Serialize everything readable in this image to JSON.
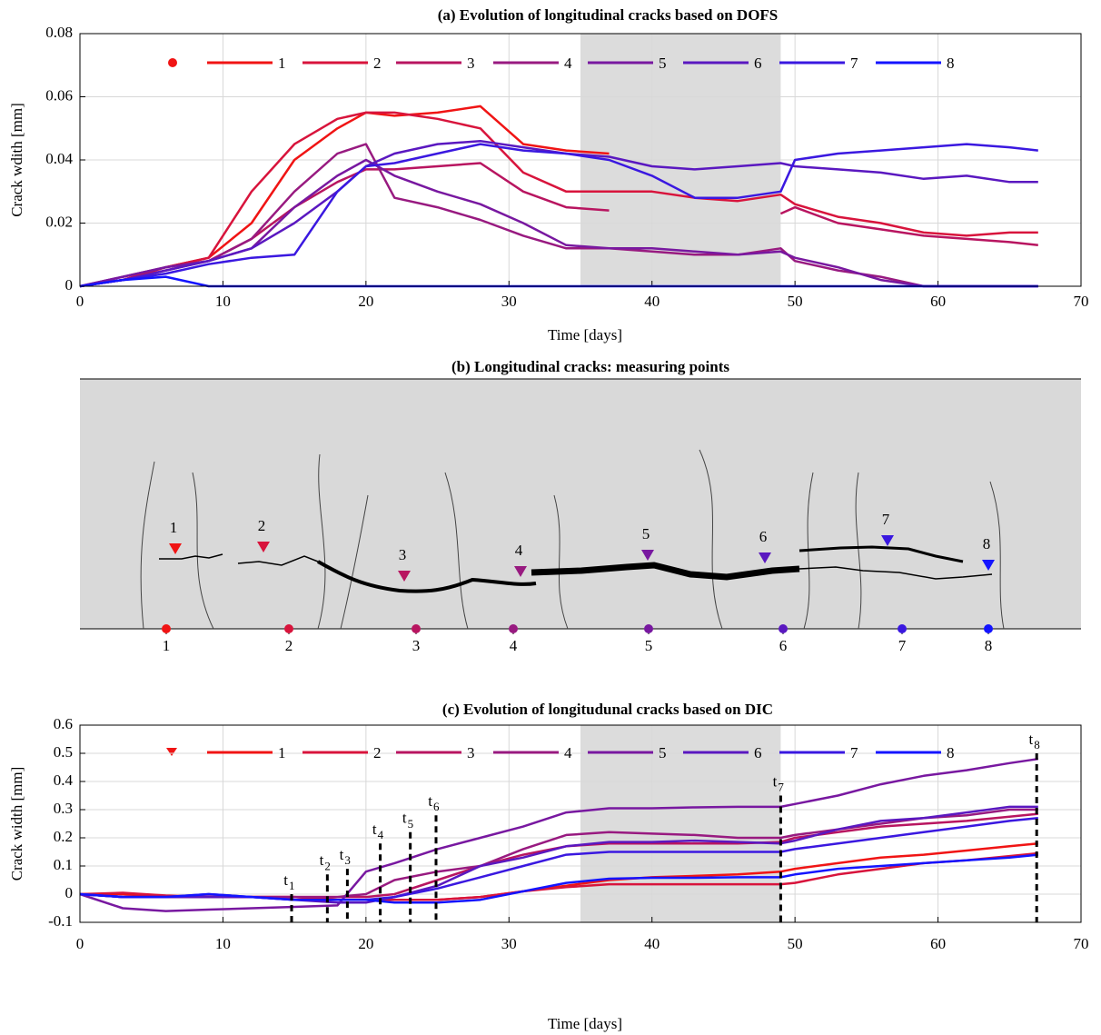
{
  "chart_data": [
    {
      "type": "line",
      "title": "(a) Evolution of longitudinal cracks based on DOFS",
      "xlabel": "Time [days]",
      "ylabel": "Crack wdith [mm]",
      "x": [
        0,
        3,
        6,
        9,
        12,
        15,
        18,
        20,
        22,
        25,
        28,
        31,
        34,
        37,
        40,
        43,
        46,
        49,
        50,
        53,
        56,
        59,
        62,
        65,
        67
      ],
      "xlim": [
        0,
        70
      ],
      "xticks": [
        0,
        10,
        20,
        30,
        40,
        50,
        60,
        70
      ],
      "ylim": [
        0,
        0.08
      ],
      "yticks": [
        0,
        0.02,
        0.04,
        0.06,
        0.08
      ],
      "grid": true,
      "shade": [
        35,
        49
      ],
      "series": [
        {
          "name": "1",
          "color": "#f01414",
          "values": [
            0,
            0.002,
            0.006,
            0.009,
            0.02,
            0.04,
            0.05,
            0.055,
            0.054,
            0.055,
            0.057,
            0.045,
            0.043,
            0.042,
            null,
            null,
            null,
            null,
            null,
            null,
            null,
            null,
            null,
            null,
            null
          ]
        },
        {
          "name": "2",
          "color": "#d8143c",
          "values": [
            0,
            0.002,
            0.006,
            0.009,
            0.03,
            0.045,
            0.053,
            0.055,
            0.055,
            0.053,
            0.05,
            0.036,
            0.03,
            0.03,
            0.03,
            0.028,
            0.027,
            0.029,
            0.026,
            0.022,
            0.02,
            0.017,
            0.016,
            0.017,
            0.017
          ]
        },
        {
          "name": "3",
          "color": "#b81560",
          "values": [
            0,
            0.002,
            0.005,
            0.008,
            0.015,
            0.025,
            0.033,
            0.037,
            0.037,
            0.038,
            0.039,
            0.03,
            0.025,
            0.024,
            null,
            null,
            null,
            0.023,
            0.025,
            0.02,
            0.018,
            0.016,
            0.015,
            0.014,
            0.013
          ]
        },
        {
          "name": "4",
          "color": "#981a80",
          "values": [
            0,
            0.003,
            0.006,
            0.008,
            0.015,
            0.03,
            0.042,
            0.045,
            0.028,
            0.025,
            0.021,
            0.016,
            0.012,
            0.012,
            0.011,
            0.01,
            0.01,
            0.012,
            0.008,
            0.005,
            0.003,
            0,
            0,
            0,
            0
          ]
        },
        {
          "name": "5",
          "color": "#7818a0",
          "values": [
            0,
            0.003,
            0.006,
            0.008,
            0.012,
            0.025,
            0.035,
            0.04,
            0.035,
            0.03,
            0.026,
            0.02,
            0.013,
            0.012,
            0.012,
            0.011,
            0.01,
            0.011,
            0.009,
            0.006,
            0.002,
            0,
            0,
            0,
            0
          ]
        },
        {
          "name": "6",
          "color": "#5a18c0",
          "values": [
            0,
            0.002,
            0.005,
            0.008,
            0.012,
            0.02,
            0.03,
            0.038,
            0.042,
            0.045,
            0.046,
            0.044,
            0.042,
            0.041,
            0.038,
            0.037,
            0.038,
            0.039,
            0.038,
            0.037,
            0.036,
            0.034,
            0.035,
            0.033,
            0.033
          ]
        },
        {
          "name": "7",
          "color": "#3a18e0",
          "values": [
            0,
            0.002,
            0.004,
            0.007,
            0.009,
            0.01,
            0.03,
            0.038,
            0.039,
            0.042,
            0.045,
            0.043,
            0.042,
            0.04,
            0.035,
            0.028,
            0.028,
            0.03,
            0.04,
            0.042,
            0.043,
            0.044,
            0.045,
            0.044,
            0.043
          ]
        },
        {
          "name": "8",
          "color": "#1414ff",
          "values": [
            0,
            0.002,
            0.003,
            0,
            0,
            0,
            0,
            0,
            0,
            0,
            0,
            0,
            0,
            0,
            0,
            0,
            0,
            0,
            0,
            0,
            0,
            0,
            0,
            0,
            0
          ]
        }
      ]
    },
    {
      "type": "line",
      "title": "(c) Evolution of longitudunal cracks based on DIC",
      "xlabel": "Time [days]",
      "ylabel": "Crack width [mm]",
      "x": [
        0,
        3,
        6,
        9,
        12,
        15,
        18,
        20,
        22,
        25,
        28,
        31,
        34,
        37,
        40,
        43,
        46,
        49,
        50,
        53,
        56,
        59,
        62,
        65,
        67
      ],
      "xlim": [
        0,
        70
      ],
      "xticks": [
        0,
        10,
        20,
        30,
        40,
        50,
        60,
        70
      ],
      "ylim": [
        -0.1,
        0.6
      ],
      "yticks": [
        -0.1,
        0,
        0.1,
        0.2,
        0.3,
        0.4,
        0.5,
        0.6
      ],
      "grid": true,
      "shade": [
        35,
        49
      ],
      "series": [
        {
          "name": "1",
          "color": "#f01414",
          "values": [
            0,
            0,
            -0.01,
            -0.01,
            -0.01,
            -0.01,
            -0.02,
            -0.02,
            -0.02,
            -0.02,
            -0.01,
            0.01,
            0.03,
            0.05,
            0.06,
            0.065,
            0.07,
            0.08,
            0.09,
            0.11,
            0.13,
            0.14,
            0.155,
            0.17,
            0.18
          ]
        },
        {
          "name": "2",
          "color": "#d8143c",
          "values": [
            0,
            0.005,
            -0.005,
            -0.01,
            -0.01,
            -0.01,
            -0.02,
            -0.02,
            -0.02,
            -0.02,
            -0.01,
            0.01,
            0.025,
            0.035,
            0.035,
            0.035,
            0.035,
            0.035,
            0.04,
            0.07,
            0.09,
            0.11,
            0.12,
            0.135,
            0.145
          ]
        },
        {
          "name": "3",
          "color": "#b81560",
          "values": [
            0,
            -0.01,
            -0.01,
            -0.01,
            -0.01,
            -0.01,
            -0.01,
            -0.01,
            0,
            0.05,
            0.1,
            0.14,
            0.17,
            0.18,
            0.18,
            0.18,
            0.18,
            0.185,
            0.2,
            0.22,
            0.24,
            0.25,
            0.26,
            0.275,
            0.285
          ]
        },
        {
          "name": "4",
          "color": "#981a80",
          "values": [
            0,
            -0.01,
            -0.01,
            -0.01,
            -0.01,
            -0.01,
            -0.01,
            0,
            0.05,
            0.08,
            0.1,
            0.16,
            0.21,
            0.22,
            0.215,
            0.21,
            0.2,
            0.2,
            0.21,
            0.23,
            0.25,
            0.27,
            0.28,
            0.3,
            0.3
          ]
        },
        {
          "name": "5",
          "color": "#7818a0",
          "values": [
            0,
            -0.05,
            -0.06,
            -0.055,
            -0.05,
            -0.045,
            -0.04,
            0.08,
            0.11,
            0.16,
            0.2,
            0.24,
            0.29,
            0.305,
            0.305,
            0.308,
            0.31,
            0.31,
            0.32,
            0.35,
            0.39,
            0.42,
            0.44,
            0.465,
            0.48
          ]
        },
        {
          "name": "6",
          "color": "#5a18c0",
          "values": [
            0,
            -0.01,
            -0.01,
            -0.01,
            -0.01,
            -0.02,
            -0.03,
            -0.03,
            -0.01,
            0.03,
            0.1,
            0.13,
            0.17,
            0.185,
            0.185,
            0.19,
            0.185,
            0.18,
            0.19,
            0.23,
            0.26,
            0.27,
            0.29,
            0.31,
            0.31
          ]
        },
        {
          "name": "7",
          "color": "#3a18e0",
          "values": [
            0,
            -0.01,
            -0.01,
            0,
            -0.01,
            -0.02,
            -0.02,
            -0.02,
            -0.01,
            0.02,
            0.06,
            0.1,
            0.14,
            0.15,
            0.15,
            0.15,
            0.15,
            0.15,
            0.16,
            0.18,
            0.2,
            0.22,
            0.24,
            0.26,
            0.27
          ]
        },
        {
          "name": "8",
          "color": "#1414ff",
          "values": [
            0,
            -0.01,
            -0.01,
            0,
            -0.01,
            -0.02,
            -0.02,
            -0.02,
            -0.03,
            -0.03,
            -0.02,
            0.01,
            0.04,
            0.055,
            0.058,
            0.058,
            0.06,
            0.06,
            0.07,
            0.09,
            0.1,
            0.11,
            0.12,
            0.13,
            0.14
          ]
        }
      ],
      "annotations": [
        {
          "text": "t",
          "sub": "1",
          "x": 14.8,
          "top": 0
        },
        {
          "text": "t",
          "sub": "2",
          "x": 17.3,
          "top": 0.07
        },
        {
          "text": "t",
          "sub": "3",
          "x": 18.7,
          "top": 0.09
        },
        {
          "text": "t",
          "sub": "4",
          "x": 21.0,
          "top": 0.18
        },
        {
          "text": "t",
          "sub": "5",
          "x": 23.1,
          "top": 0.22
        },
        {
          "text": "t",
          "sub": "6",
          "x": 24.9,
          "top": 0.28
        },
        {
          "text": "t",
          "sub": "7",
          "x": 49.0,
          "top": 0.35
        },
        {
          "text": "t",
          "sub": "8",
          "x": 66.9,
          "top": 0.5
        }
      ]
    }
  ],
  "diagram": {
    "title": "(b) Longitudinal cracks: measuring points",
    "crack_labels": [
      "1",
      "2",
      "3",
      "4",
      "5",
      "6",
      "7",
      "8"
    ],
    "tick_labels": [
      "1",
      "2",
      "3",
      "4",
      "5",
      "6",
      "7",
      "8"
    ]
  }
}
